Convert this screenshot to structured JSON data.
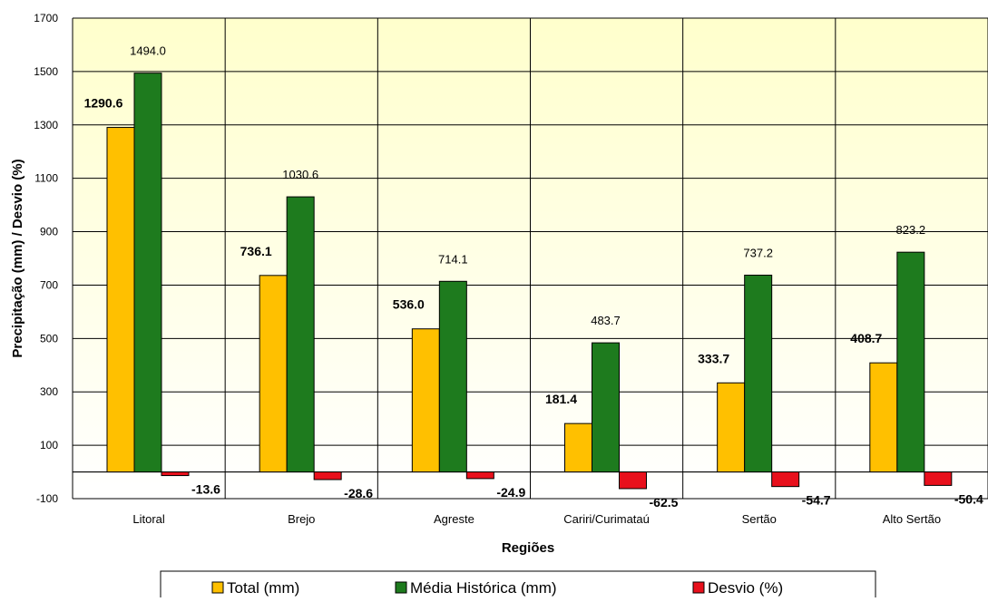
{
  "chart_data": {
    "type": "bar",
    "title": "",
    "xlabel": "Regiões",
    "ylabel": "Precipitação  (mm) / Desvio  (%)",
    "ylim": [
      -100,
      1700
    ],
    "yticks": [
      -100,
      100,
      300,
      500,
      700,
      900,
      1100,
      1300,
      1500,
      1700
    ],
    "grid": true,
    "legend_position": "bottom",
    "categories": [
      "Litoral",
      "Brejo",
      "Agreste",
      "Cariri/Curimataú",
      "Sertão",
      "Alto Sertão"
    ],
    "series": [
      {
        "name": "Total (mm)",
        "color": "#FFC000",
        "label_bold": true,
        "values": [
          1290.6,
          736.1,
          536.0,
          181.4,
          333.7,
          408.7
        ]
      },
      {
        "name": "Média Histórica (mm)",
        "color": "#1E7B1E",
        "label_bold": false,
        "values": [
          1494.0,
          1030.6,
          714.1,
          483.7,
          737.2,
          823.2
        ]
      },
      {
        "name": "Desvio (%)",
        "color": "#E8101C",
        "label_bold": true,
        "values": [
          -13.6,
          -28.6,
          -24.9,
          -62.5,
          -54.7,
          -50.4
        ]
      }
    ],
    "value_labels": [
      [
        "1290.6",
        "736.1",
        "536.0",
        "181.4",
        "333.7",
        "408.7"
      ],
      [
        "1494.0",
        "1030.6",
        "714.1",
        "483.7",
        "737.2",
        "823.2"
      ],
      [
        "-13.6",
        "-28.6",
        "-24.9",
        "-62.5",
        "-54.7",
        "-50.4"
      ]
    ],
    "plot_background_top": "#FFFFCC",
    "plot_background_bottom": "#FFFFFF"
  }
}
